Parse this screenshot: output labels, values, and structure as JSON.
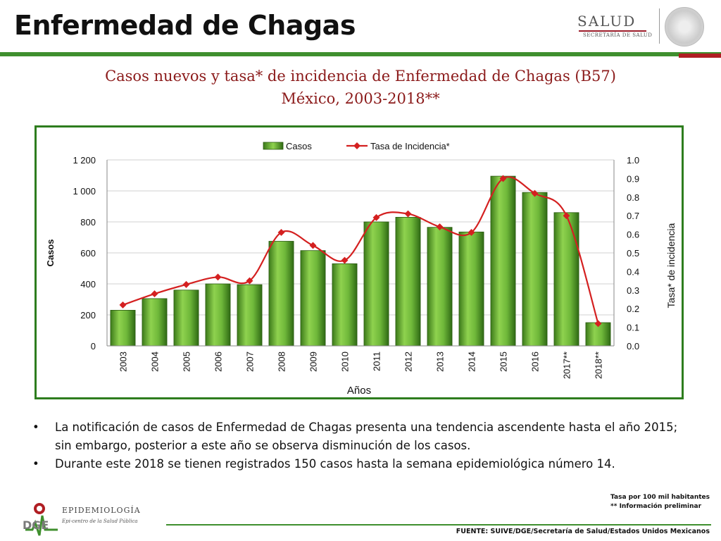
{
  "slide": {
    "title": "Enfermedad de Chagas",
    "logo_text": "SALUD",
    "logo_subtext": "SECRETARÍA DE SALUD"
  },
  "chart_data": {
    "type": "bar",
    "title_line1": "Casos nuevos y tasa* de incidencia de Enfermedad de Chagas (B57)",
    "title_line2": "México, 2003-2018**",
    "categories": [
      "2003",
      "2004",
      "2005",
      "2006",
      "2007",
      "2008",
      "2009",
      "2010",
      "2011",
      "2012",
      "2013",
      "2014",
      "2015",
      "2016",
      "2017**",
      "2018**"
    ],
    "series": [
      {
        "name": "Casos",
        "type": "bar",
        "axis": "left",
        "values": [
          230,
          305,
          360,
          400,
          395,
          675,
          615,
          530,
          800,
          830,
          765,
          735,
          1095,
          990,
          860,
          150
        ]
      },
      {
        "name": "Tasa de Incidencia*",
        "type": "line",
        "axis": "right",
        "values": [
          0.22,
          0.28,
          0.33,
          0.37,
          0.35,
          0.61,
          0.54,
          0.46,
          0.69,
          0.71,
          0.64,
          0.61,
          0.9,
          0.82,
          0.7,
          0.12
        ]
      }
    ],
    "xlabel": "Años",
    "ylabel": "Casos",
    "y2label": "Tasa* de incidencia",
    "ylim": [
      0,
      1200
    ],
    "y2lim": [
      0,
      1.0
    ],
    "yticks": [
      "0",
      "200",
      "400",
      "600",
      "800",
      "1 000",
      "1 200"
    ],
    "y2ticks": [
      "0.0",
      "0.1",
      "0.2",
      "0.3",
      "0.4",
      "0.5",
      "0.6",
      "0.7",
      "0.8",
      "0.9",
      "1.0"
    ],
    "grid": true,
    "legend_position": "top",
    "colors": {
      "bar": "#6fb83a",
      "bar_dark": "#3c7a1a",
      "line": "#d42020",
      "frame": "#2e7d1e"
    }
  },
  "bullets": [
    "La notificación de casos de Enfermedad de Chagas presenta una tendencia ascendente hasta el año 2015; sin embargo, posterior a este año se observa disminución de los casos.",
    "Durante este 2018 se tienen registrados 150 casos hasta la semana epidemiológica número 14."
  ],
  "footnotes": {
    "rate": "Tasa por 100 mil habitantes",
    "prelim": "**    Información preliminar"
  },
  "footer": {
    "epi_name": "EPIDEMIOLOGÍA",
    "epi_tagline": "Epi-centro de la Salud Pública",
    "dge": "DGE",
    "source": "FUENTE: SUIVE/DGE/Secretaría de Salud/Estados Unidos Mexicanos"
  }
}
